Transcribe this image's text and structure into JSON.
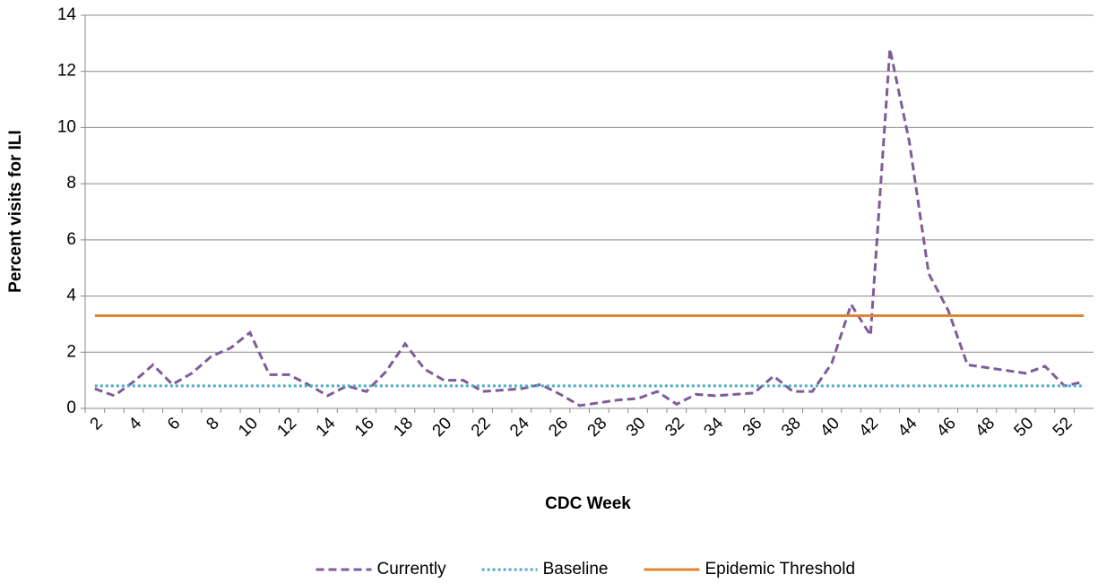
{
  "chart_data": {
    "type": "line",
    "x_label": "CDC Week",
    "y_label": "Percent visits for ILI",
    "categories": [
      "2",
      null,
      "4",
      null,
      "6",
      null,
      "8",
      null,
      "10",
      null,
      "12",
      null,
      "14",
      null,
      "16",
      null,
      "18",
      null,
      "20",
      null,
      "22",
      null,
      "24",
      null,
      "26",
      null,
      "28",
      null,
      "30",
      null,
      "32",
      null,
      "34",
      null,
      "36",
      null,
      "38",
      null,
      "40",
      null,
      "42",
      null,
      "44",
      null,
      "46",
      null,
      "48",
      null,
      "50",
      null,
      "52",
      null
    ],
    "series": [
      {
        "name": "Currently",
        "color": "#7f5c98",
        "line_style": "dashed",
        "values": [
          0.7,
          0.45,
          0.95,
          1.55,
          0.85,
          1.25,
          1.85,
          2.15,
          2.7,
          1.2,
          1.2,
          0.85,
          0.45,
          0.8,
          0.6,
          1.3,
          2.3,
          1.4,
          1.0,
          1.0,
          0.6,
          0.65,
          0.7,
          0.85,
          0.5,
          0.1,
          0.2,
          0.3,
          0.35,
          0.6,
          0.15,
          0.5,
          0.45,
          0.5,
          0.55,
          1.15,
          0.6,
          0.6,
          1.6,
          3.7,
          2.6,
          12.8,
          9.5,
          4.8,
          3.5,
          1.55,
          1.45,
          1.35,
          1.25,
          1.5,
          0.8,
          0.95
        ]
      },
      {
        "name": "Baseline",
        "color": "#4bacc6",
        "line_style": "dotted",
        "values": [
          0.8,
          0.8,
          0.8,
          0.8,
          0.8,
          0.8,
          0.8,
          0.8,
          0.8,
          0.8,
          0.8,
          0.8,
          0.8,
          0.8,
          0.8,
          0.8,
          0.8,
          0.8,
          0.8,
          0.8,
          0.8,
          0.8,
          0.8,
          0.8,
          0.8,
          0.8,
          0.8,
          0.8,
          0.8,
          0.8,
          0.8,
          0.8,
          0.8,
          0.8,
          0.8,
          0.8,
          0.8,
          0.8,
          0.8,
          0.8,
          0.8,
          0.8,
          0.8,
          0.8,
          0.8,
          0.8,
          0.8,
          0.8,
          0.8,
          0.8,
          0.8,
          0.8
        ]
      },
      {
        "name": "Epidemic Threshold",
        "color": "#e08632",
        "line_style": "solid",
        "values": [
          3.3,
          3.3,
          3.3,
          3.3,
          3.3,
          3.3,
          3.3,
          3.3,
          3.3,
          3.3,
          3.3,
          3.3,
          3.3,
          3.3,
          3.3,
          3.3,
          3.3,
          3.3,
          3.3,
          3.3,
          3.3,
          3.3,
          3.3,
          3.3,
          3.3,
          3.3,
          3.3,
          3.3,
          3.3,
          3.3,
          3.3,
          3.3,
          3.3,
          3.3,
          3.3,
          3.3,
          3.3,
          3.3,
          3.3,
          3.3,
          3.3,
          3.3,
          3.3,
          3.3,
          3.3,
          3.3,
          3.3,
          3.3,
          3.3,
          3.3,
          3.3,
          3.3
        ]
      }
    ],
    "ylim": [
      0,
      14
    ],
    "yticks": [
      0,
      2,
      4,
      6,
      8,
      10,
      12,
      14
    ],
    "grid": true,
    "legend": "bottom"
  }
}
